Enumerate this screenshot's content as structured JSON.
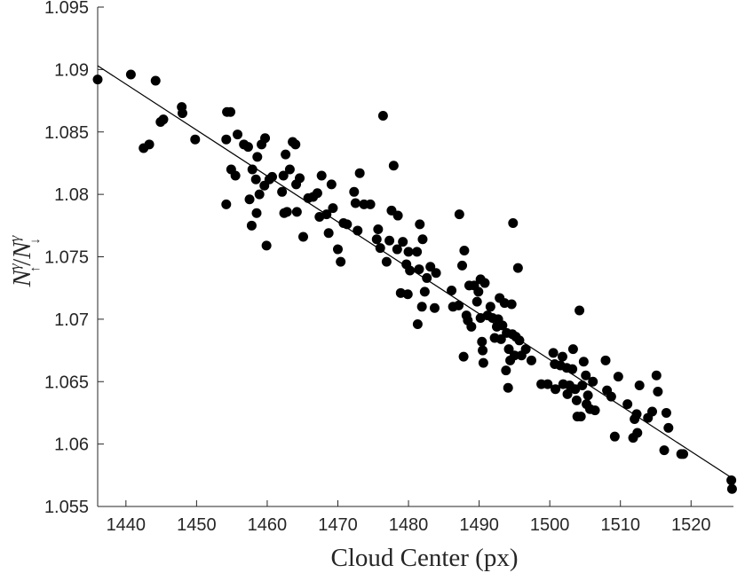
{
  "chart_data": {
    "type": "scatter",
    "xlabel": "Cloud Center (px)",
    "ylabel": "N↑γ / N↓γ",
    "xlim": [
      1436,
      1526
    ],
    "ylim": [
      1.055,
      1.095
    ],
    "xticks": [
      "1440",
      "1450",
      "1460",
      "1470",
      "1480",
      "1490",
      "1500",
      "1510",
      "1520"
    ],
    "yticks": [
      "1.055",
      "1.06",
      "1.065",
      "1.07",
      "1.075",
      "1.08",
      "1.085",
      "1.09",
      "1.095"
    ],
    "grid": false,
    "marker_color": "#000000",
    "fit_line": {
      "x": [
        1436,
        1526
      ],
      "y": [
        1.0903,
        1.0572
      ]
    },
    "points": [
      [
        1436.0,
        1.0892
      ],
      [
        1440.7,
        1.0896
      ],
      [
        1442.5,
        1.0837
      ],
      [
        1443.3,
        1.084
      ],
      [
        1444.2,
        1.0891
      ],
      [
        1444.9,
        1.0858
      ],
      [
        1445.3,
        1.086
      ],
      [
        1447.9,
        1.087
      ],
      [
        1448.0,
        1.0865
      ],
      [
        1449.8,
        1.0844
      ],
      [
        1454.3,
        1.0866
      ],
      [
        1454.8,
        1.0866
      ],
      [
        1454.2,
        1.0844
      ],
      [
        1454.2,
        1.0792
      ],
      [
        1454.9,
        1.082
      ],
      [
        1455.5,
        1.0815
      ],
      [
        1455.8,
        1.0848
      ],
      [
        1456.7,
        1.084
      ],
      [
        1457.3,
        1.0838
      ],
      [
        1457.5,
        1.0796
      ],
      [
        1457.8,
        1.0775
      ],
      [
        1457.9,
        1.082
      ],
      [
        1458.4,
        1.0812
      ],
      [
        1458.5,
        1.0785
      ],
      [
        1458.6,
        1.083
      ],
      [
        1458.9,
        1.08
      ],
      [
        1459.2,
        1.084
      ],
      [
        1459.6,
        1.0807
      ],
      [
        1459.7,
        1.0845
      ],
      [
        1459.9,
        1.0759
      ],
      [
        1460.3,
        1.0812
      ],
      [
        1460.7,
        1.0814
      ],
      [
        1462.1,
        1.0802
      ],
      [
        1462.3,
        1.0815
      ],
      [
        1462.4,
        1.0785
      ],
      [
        1462.6,
        1.0832
      ],
      [
        1462.8,
        1.0786
      ],
      [
        1463.2,
        1.082
      ],
      [
        1463.6,
        1.0842
      ],
      [
        1464.0,
        1.084
      ],
      [
        1464.1,
        1.0808
      ],
      [
        1464.2,
        1.0786
      ],
      [
        1464.6,
        1.0813
      ],
      [
        1465.1,
        1.0766
      ],
      [
        1465.8,
        1.0797
      ],
      [
        1466.5,
        1.0798
      ],
      [
        1467.1,
        1.0801
      ],
      [
        1467.4,
        1.0782
      ],
      [
        1467.7,
        1.0815
      ],
      [
        1468.4,
        1.0784
      ],
      [
        1468.7,
        1.0769
      ],
      [
        1469.1,
        1.0808
      ],
      [
        1469.3,
        1.0789
      ],
      [
        1470.0,
        1.0756
      ],
      [
        1470.4,
        1.0746
      ],
      [
        1470.8,
        1.0777
      ],
      [
        1471.3,
        1.0776
      ],
      [
        1472.3,
        1.0802
      ],
      [
        1472.5,
        1.0793
      ],
      [
        1472.8,
        1.0771
      ],
      [
        1473.1,
        1.0817
      ],
      [
        1473.7,
        1.0792
      ],
      [
        1474.6,
        1.0792
      ],
      [
        1475.5,
        1.0764
      ],
      [
        1475.7,
        1.0772
      ],
      [
        1476.0,
        1.0757
      ],
      [
        1476.4,
        1.0863
      ],
      [
        1476.9,
        1.0746
      ],
      [
        1477.3,
        1.0763
      ],
      [
        1477.6,
        1.0787
      ],
      [
        1477.9,
        1.0823
      ],
      [
        1478.4,
        1.0756
      ],
      [
        1478.5,
        1.0783
      ],
      [
        1478.9,
        1.0721
      ],
      [
        1479.2,
        1.0762
      ],
      [
        1479.7,
        1.0744
      ],
      [
        1479.9,
        1.072
      ],
      [
        1480.0,
        1.0754
      ],
      [
        1480.2,
        1.0739
      ],
      [
        1481.2,
        1.0754
      ],
      [
        1481.3,
        1.0696
      ],
      [
        1481.5,
        1.074
      ],
      [
        1481.6,
        1.0776
      ],
      [
        1481.9,
        1.071
      ],
      [
        1482.0,
        1.0764
      ],
      [
        1482.3,
        1.0722
      ],
      [
        1482.6,
        1.0733
      ],
      [
        1483.1,
        1.0742
      ],
      [
        1483.7,
        1.0709
      ],
      [
        1483.9,
        1.0737
      ],
      [
        1486.1,
        1.0723
      ],
      [
        1486.3,
        1.071
      ],
      [
        1487.1,
        1.0711
      ],
      [
        1487.2,
        1.0784
      ],
      [
        1487.6,
        1.0743
      ],
      [
        1487.8,
        1.067
      ],
      [
        1487.9,
        1.0755
      ],
      [
        1488.2,
        1.0703
      ],
      [
        1488.4,
        1.0699
      ],
      [
        1488.6,
        1.0727
      ],
      [
        1488.9,
        1.0694
      ],
      [
        1489.3,
        1.0727
      ],
      [
        1489.7,
        1.0714
      ],
      [
        1489.9,
        1.0722
      ],
      [
        1490.2,
        1.0732
      ],
      [
        1490.2,
        1.0701
      ],
      [
        1490.4,
        1.0682
      ],
      [
        1490.5,
        1.0675
      ],
      [
        1490.6,
        1.0665
      ],
      [
        1490.8,
        1.0729
      ],
      [
        1491.2,
        1.0703
      ],
      [
        1491.6,
        1.071
      ],
      [
        1491.9,
        1.0701
      ],
      [
        1492.2,
        1.0685
      ],
      [
        1492.5,
        1.0694
      ],
      [
        1492.7,
        1.07
      ],
      [
        1492.9,
        1.0717
      ],
      [
        1493.1,
        1.0684
      ],
      [
        1493.3,
        1.0695
      ],
      [
        1493.6,
        1.0713
      ],
      [
        1493.8,
        1.0659
      ],
      [
        1493.9,
        1.0689
      ],
      [
        1494.1,
        1.0645
      ],
      [
        1494.2,
        1.0676
      ],
      [
        1494.4,
        1.0667
      ],
      [
        1494.6,
        1.0712
      ],
      [
        1494.7,
        1.0688
      ],
      [
        1494.8,
        1.0777
      ],
      [
        1495.0,
        1.0671
      ],
      [
        1495.2,
        1.0686
      ],
      [
        1495.5,
        1.0741
      ],
      [
        1495.7,
        1.0683
      ],
      [
        1496.0,
        1.0671
      ],
      [
        1496.6,
        1.0676
      ],
      [
        1497.4,
        1.0667
      ],
      [
        1498.8,
        1.0648
      ],
      [
        1499.7,
        1.0648
      ],
      [
        1500.5,
        1.0673
      ],
      [
        1500.7,
        1.0664
      ],
      [
        1500.8,
        1.0644
      ],
      [
        1501.5,
        1.0663
      ],
      [
        1501.8,
        1.067
      ],
      [
        1501.9,
        1.0648
      ],
      [
        1502.4,
        1.0661
      ],
      [
        1502.5,
        1.064
      ],
      [
        1502.8,
        1.0647
      ],
      [
        1503.2,
        1.066
      ],
      [
        1503.3,
        1.0676
      ],
      [
        1503.6,
        1.0644
      ],
      [
        1503.8,
        1.0635
      ],
      [
        1503.9,
        1.0622
      ],
      [
        1504.2,
        1.0707
      ],
      [
        1504.4,
        1.0622
      ],
      [
        1504.6,
        1.0647
      ],
      [
        1504.8,
        1.0666
      ],
      [
        1505.1,
        1.0655
      ],
      [
        1505.2,
        1.0632
      ],
      [
        1505.4,
        1.0639
      ],
      [
        1505.7,
        1.0628
      ],
      [
        1506.1,
        1.065
      ],
      [
        1506.4,
        1.0627
      ],
      [
        1507.9,
        1.0667
      ],
      [
        1508.1,
        1.0643
      ],
      [
        1508.7,
        1.0638
      ],
      [
        1509.2,
        1.0606
      ],
      [
        1509.7,
        1.0654
      ],
      [
        1511.0,
        1.0632
      ],
      [
        1511.8,
        1.0605
      ],
      [
        1512.0,
        1.062
      ],
      [
        1512.3,
        1.0624
      ],
      [
        1512.4,
        1.0609
      ],
      [
        1512.7,
        1.0647
      ],
      [
        1513.9,
        1.0621
      ],
      [
        1514.5,
        1.0626
      ],
      [
        1515.1,
        1.0655
      ],
      [
        1515.3,
        1.0642
      ],
      [
        1516.2,
        1.0595
      ],
      [
        1516.5,
        1.0625
      ],
      [
        1516.8,
        1.0613
      ],
      [
        1518.6,
        1.0592
      ],
      [
        1518.9,
        1.0592
      ],
      [
        1525.7,
        1.0571
      ],
      [
        1525.8,
        1.0564
      ]
    ]
  }
}
